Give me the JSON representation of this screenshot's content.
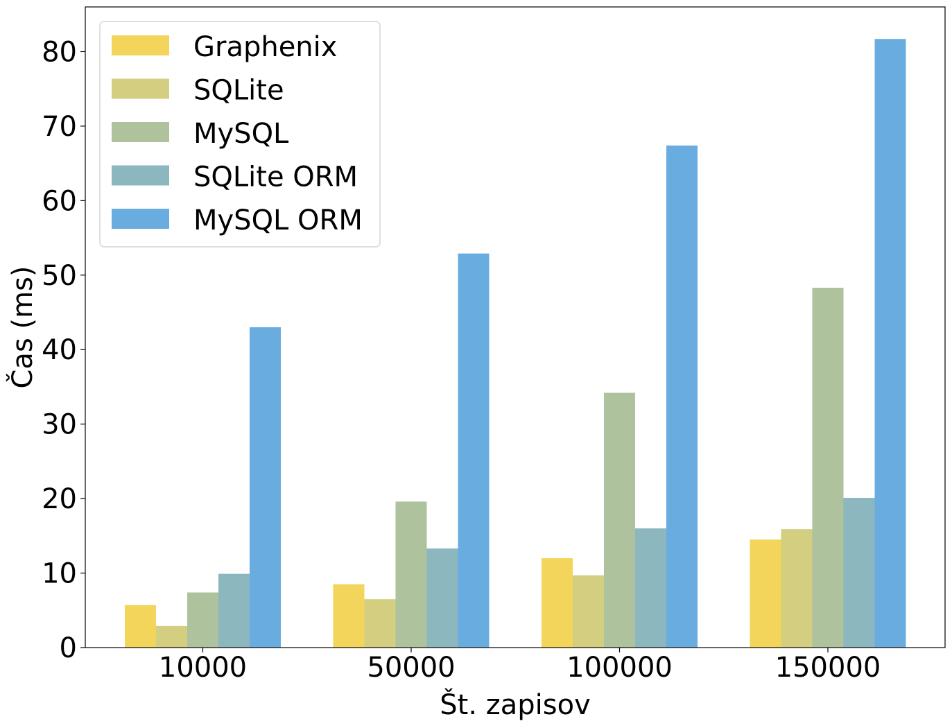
{
  "chart_data": {
    "type": "bar",
    "title": "",
    "xlabel": "Št. zapisov",
    "ylabel": "Čas (ms)",
    "categories": [
      "10000",
      "50000",
      "100000",
      "150000"
    ],
    "ylim": [
      0,
      86
    ],
    "yticks": [
      0,
      10,
      20,
      30,
      40,
      50,
      60,
      70,
      80
    ],
    "grid": false,
    "legend_position": "top-left",
    "series": [
      {
        "name": "Graphenix",
        "color": "#f2d55a",
        "values": [
          5.7,
          8.5,
          12.0,
          14.5
        ]
      },
      {
        "name": "SQLite",
        "color": "#d3ce80",
        "values": [
          2.9,
          6.5,
          9.7,
          15.9
        ]
      },
      {
        "name": "MySQL",
        "color": "#aec29d",
        "values": [
          7.4,
          19.6,
          34.2,
          48.3
        ]
      },
      {
        "name": "SQLite ORM",
        "color": "#8db7bf",
        "values": [
          9.9,
          13.3,
          16.0,
          20.1
        ]
      },
      {
        "name": "MySQL ORM",
        "color": "#69ade0",
        "values": [
          43.0,
          52.9,
          67.4,
          81.7
        ]
      }
    ]
  }
}
